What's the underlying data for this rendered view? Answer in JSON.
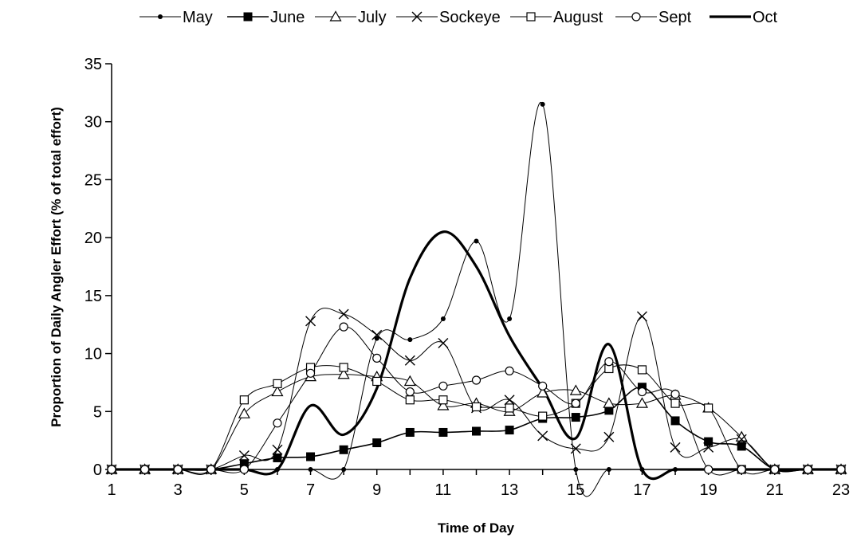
{
  "chart_data": {
    "type": "line",
    "title": "",
    "xlabel": "Time of Day",
    "ylabel": "Proportion of Daily Angler Effort (% of total effort)",
    "x": [
      1,
      2,
      3,
      4,
      5,
      6,
      7,
      8,
      9,
      10,
      11,
      12,
      13,
      14,
      15,
      16,
      17,
      18,
      19,
      20,
      21,
      22,
      23
    ],
    "x_ticks": [
      1,
      3,
      5,
      7,
      9,
      11,
      13,
      15,
      17,
      19,
      21,
      23
    ],
    "xlim": [
      1,
      23
    ],
    "ylim": [
      0,
      35
    ],
    "y_ticks": [
      0,
      5,
      10,
      15,
      20,
      25,
      30,
      35
    ],
    "grid": false,
    "legend_position": "top",
    "series": [
      {
        "name": "May",
        "marker": "dot",
        "line": "thin",
        "values": [
          0,
          0,
          0,
          0,
          0,
          0,
          0,
          0,
          11.3,
          11.2,
          13,
          19.7,
          13,
          31.5,
          0,
          0,
          0,
          0,
          0,
          0,
          0,
          0,
          0
        ]
      },
      {
        "name": "June",
        "marker": "filled-square",
        "line": "medium",
        "values": [
          0,
          0,
          0,
          0,
          0.5,
          1,
          1.1,
          1.7,
          2.3,
          3.2,
          3.2,
          3.3,
          3.4,
          4.4,
          4.5,
          5.1,
          7.1,
          4.2,
          2.4,
          2,
          0,
          0,
          0
        ]
      },
      {
        "name": "July",
        "marker": "open-triangle",
        "line": "thin",
        "values": [
          0,
          0,
          0,
          0,
          4.8,
          6.7,
          8,
          8.2,
          8,
          7.6,
          5.5,
          5.7,
          5,
          6.6,
          6.8,
          5.7,
          5.7,
          6.4,
          5.3,
          2.8,
          0,
          0,
          0
        ]
      },
      {
        "name": "Sockeye",
        "marker": "cross",
        "line": "thin",
        "values": [
          0,
          0,
          0,
          0,
          1.2,
          1.7,
          12.8,
          13.4,
          11.6,
          9.4,
          10.9,
          5.3,
          6,
          2.9,
          1.8,
          2.8,
          13.2,
          1.9,
          1.9,
          2.6,
          0,
          0,
          0
        ]
      },
      {
        "name": "August",
        "marker": "open-square",
        "line": "thin",
        "values": [
          0,
          0,
          0,
          0,
          6,
          7.4,
          8.8,
          8.8,
          7.6,
          6,
          6,
          5.4,
          5.3,
          4.6,
          5.7,
          8.7,
          8.6,
          5.7,
          5.3,
          0,
          0,
          0,
          0
        ]
      },
      {
        "name": "Sept",
        "marker": "open-circle",
        "line": "thin",
        "values": [
          0,
          0,
          0,
          0,
          0,
          4,
          8.3,
          12.3,
          9.6,
          6.7,
          7.2,
          7.7,
          8.5,
          7.2,
          5.7,
          9.3,
          6.7,
          6.5,
          0,
          0,
          0,
          0,
          0
        ]
      },
      {
        "name": "Oct",
        "marker": "none",
        "line": "thick",
        "values": [
          0,
          0,
          0,
          0,
          0,
          0,
          5.5,
          3,
          7,
          16.5,
          20.5,
          17.5,
          11.5,
          7,
          2.7,
          10.8,
          0,
          0,
          0,
          0,
          0,
          0,
          0
        ]
      }
    ]
  }
}
